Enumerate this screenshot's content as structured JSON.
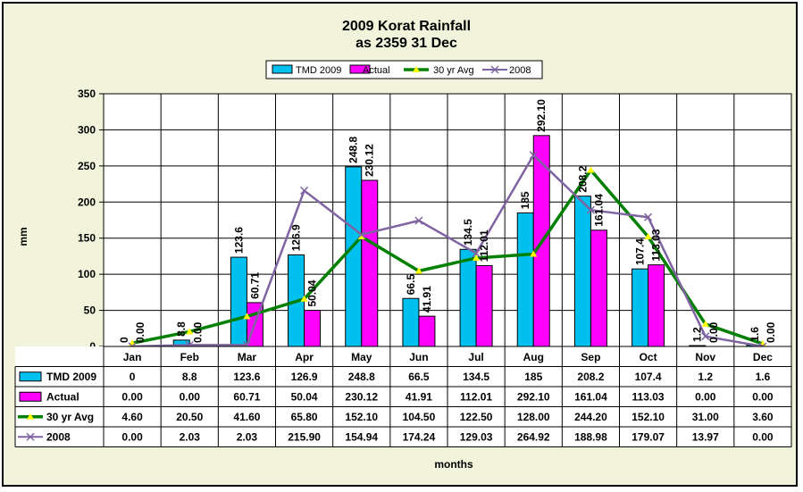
{
  "chart_data": {
    "type": "bar",
    "title": "2009 Korat Rainfall",
    "subtitle": "as 2359 31 Dec",
    "xlabel": "months",
    "ylabel": "mm",
    "ylim": [
      0,
      350
    ],
    "yticks": [
      0,
      50,
      100,
      150,
      200,
      250,
      300,
      350
    ],
    "grid": true,
    "legend_position": "top",
    "categories": [
      "Jan",
      "Feb",
      "Mar",
      "Apr",
      "May",
      "Jun",
      "Jul",
      "Aug",
      "Sep",
      "Oct",
      "Nov",
      "Dec"
    ],
    "series": [
      {
        "name": "TMD 2009",
        "kind": "bar",
        "color": "#00c0f0",
        "values": [
          0,
          8.8,
          123.6,
          126.9,
          248.8,
          66.5,
          134.5,
          185,
          208.2,
          107.4,
          1.2,
          1.6
        ],
        "labels": [
          "0",
          "8.8",
          "123.6",
          "126.9",
          "248.8",
          "66.5",
          "134.5",
          "185",
          "208.2",
          "107.4",
          "1.2",
          "1.6"
        ]
      },
      {
        "name": "Actual",
        "kind": "bar",
        "color": "#ff00ff",
        "values": [
          0,
          0,
          60.71,
          50.04,
          230.12,
          41.91,
          112.01,
          292.1,
          161.04,
          113.03,
          0,
          0
        ],
        "labels": [
          "0.00",
          "0.00",
          "60.71",
          "50.04",
          "230.12",
          "41.91",
          "112.01",
          "292.10",
          "161.04",
          "113.03",
          "0.00",
          "0.00"
        ]
      },
      {
        "name": "30 yr Avg",
        "kind": "line",
        "color": "#008000",
        "marker_color": "#ffff00",
        "values": [
          4.6,
          20.5,
          41.6,
          65.8,
          152.1,
          104.5,
          122.5,
          128.0,
          244.2,
          152.1,
          31.0,
          3.6
        ],
        "labels": [
          "4.60",
          "20.50",
          "41.60",
          "65.80",
          "152.10",
          "104.50",
          "122.50",
          "128.00",
          "244.20",
          "152.10",
          "31.00",
          "3.60"
        ]
      },
      {
        "name": "2008",
        "kind": "line",
        "color": "#8064a2",
        "values": [
          0.0,
          2.03,
          2.03,
          215.9,
          154.94,
          174.24,
          129.03,
          264.92,
          188.98,
          179.07,
          13.97,
          0.0
        ],
        "labels": [
          "0.00",
          "2.03",
          "2.03",
          "215.90",
          "154.94",
          "174.24",
          "129.03",
          "264.92",
          "188.98",
          "179.07",
          "13.97",
          "0.00"
        ]
      }
    ]
  }
}
